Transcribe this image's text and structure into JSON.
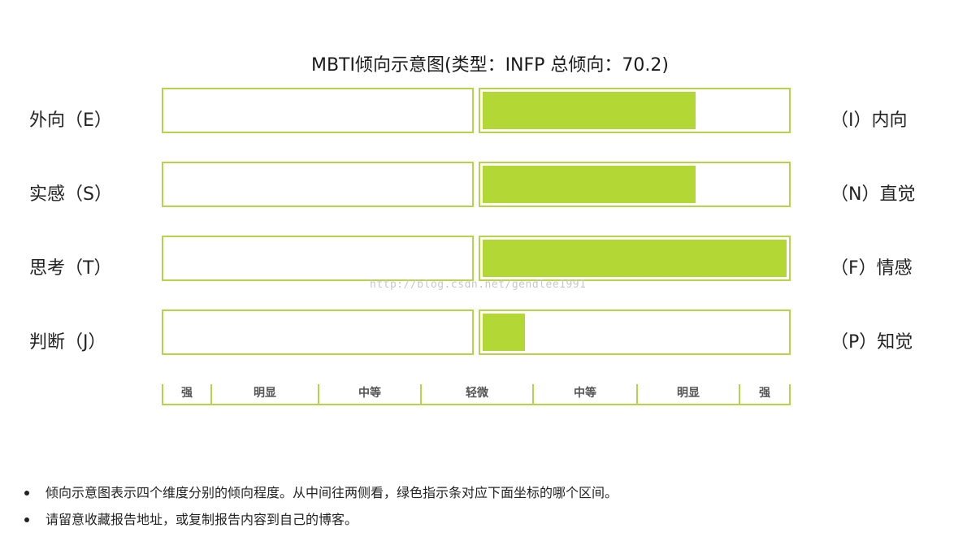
{
  "chart_data": {
    "type": "bar",
    "title": "MBTI倾向示意图(类型：INFP 总倾向：70.2)",
    "dimensions": [
      {
        "left_label": "外向（E）",
        "right_label": "（I）内向",
        "side": "right",
        "value": 0.7
      },
      {
        "left_label": "实感（S）",
        "right_label": "（N）直觉",
        "side": "right",
        "value": 0.7
      },
      {
        "left_label": "思考（T）",
        "right_label": "（F）情感",
        "side": "right",
        "value": 1.0
      },
      {
        "left_label": "判断（J）",
        "right_label": "（P）知觉",
        "side": "right",
        "value": 0.14
      }
    ],
    "scale_labels": [
      "强",
      "明显",
      "中等",
      "轻微",
      "中等",
      "明显",
      "强"
    ],
    "colors": {
      "fill": "#b3d734",
      "border": "#b5d44a"
    }
  },
  "watermark": "http://blog.csdn.net/gendlee1991",
  "notes": [
    "倾向示意图表示四个维度分别的倾向程度。从中间往两侧看，绿色指示条对应下面坐标的哪个区间。",
    "请留意收藏报告地址，或复制报告内容到自己的博客。"
  ]
}
